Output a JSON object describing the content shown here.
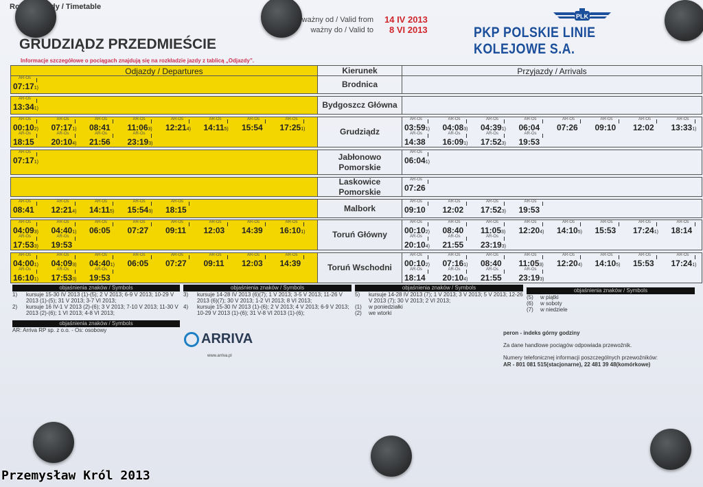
{
  "header": {
    "top_label": "Rozkład jazdy / Timetable",
    "valid_from_label": "ważny od / Valid from",
    "valid_from": "14 IV 2013",
    "valid_to_label": "ważny do / Valid to",
    "valid_to": "8 VI 2013",
    "station": "GRUDZIĄDZ PRZEDMIEŚCIE",
    "info": "Informacje szczegółowe o pociągach znajdują się na rozkładzie jazdy z tablicą „Odjazdy”.",
    "company": "PKP POLSKIE LINIE KOLEJOWE S.A.",
    "logo_text": "PLK"
  },
  "colors": {
    "departures_bg": "#f3d600",
    "company_blue": "#1b4e9b",
    "date_red": "#d0262b"
  },
  "table": {
    "departures_header": "Odjazdy / Departures",
    "direction_header": "Kierunek",
    "arrivals_header": "Przyjazdy / Arrivals",
    "carrier_code": "AR-Os",
    "rows": [
      {
        "direction": "Brodnica",
        "departures": [
          {
            "t": "07:17",
            "n": "1)"
          }
        ],
        "arrivals": []
      },
      {
        "direction": "Bydgoszcz Główna",
        "departures": [
          {
            "t": "13:34",
            "n": "1)"
          }
        ],
        "arrivals": []
      },
      {
        "direction": "Grudziądz",
        "departures": [
          {
            "t": "00:10",
            "n": "2)"
          },
          {
            "t": "07:17",
            "n": "1)"
          },
          {
            "t": "08:41",
            "n": ""
          },
          {
            "t": "11:06",
            "n": "3)"
          },
          {
            "t": "12:21",
            "n": "4)"
          },
          {
            "t": "14:11",
            "n": "5)"
          },
          {
            "t": "15:54",
            "n": ""
          },
          {
            "t": "17:25",
            "n": "1)"
          },
          {
            "t": "18:15",
            "n": ""
          },
          {
            "t": "20:10",
            "n": "4)"
          },
          {
            "t": "21:56",
            "n": ""
          },
          {
            "t": "23:19",
            "n": "3)"
          }
        ],
        "arrivals": [
          {
            "t": "03:59",
            "n": "1)"
          },
          {
            "t": "04:08",
            "n": "3)"
          },
          {
            "t": "04:39",
            "n": "1)"
          },
          {
            "t": "06:04",
            "n": ""
          },
          {
            "t": "07:26",
            "n": ""
          },
          {
            "t": "09:10",
            "n": ""
          },
          {
            "t": "12:02",
            "n": ""
          },
          {
            "t": "13:33",
            "n": "1)"
          },
          {
            "t": "14:38",
            "n": ""
          },
          {
            "t": "16:09",
            "n": "1)"
          },
          {
            "t": "17:52",
            "n": "3)"
          },
          {
            "t": "19:53",
            "n": ""
          }
        ]
      },
      {
        "direction": "Jabłonowo Pomorskie",
        "departures": [
          {
            "t": "07:17",
            "n": "1)"
          }
        ],
        "arrivals": [
          {
            "t": "06:04",
            "n": "1)"
          }
        ]
      },
      {
        "direction": "Laskowice Pomorskie",
        "departures": [],
        "arrivals": [
          {
            "t": "07:26",
            "n": ""
          }
        ]
      },
      {
        "direction": "Malbork",
        "departures": [
          {
            "t": "08:41",
            "n": ""
          },
          {
            "t": "12:21",
            "n": "4)"
          },
          {
            "t": "14:11",
            "n": "5)"
          },
          {
            "t": "15:54",
            "n": "3)"
          },
          {
            "t": "18:15",
            "n": ""
          }
        ],
        "arrivals": [
          {
            "t": "09:10",
            "n": ""
          },
          {
            "t": "12:02",
            "n": ""
          },
          {
            "t": "17:52",
            "n": "3)"
          },
          {
            "t": "19:53",
            "n": ""
          }
        ]
      },
      {
        "direction": "Toruń Główny",
        "departures": [
          {
            "t": "04:09",
            "n": "3)"
          },
          {
            "t": "04:40",
            "n": "1)"
          },
          {
            "t": "06:05",
            "n": ""
          },
          {
            "t": "07:27",
            "n": ""
          },
          {
            "t": "09:11",
            "n": ""
          },
          {
            "t": "12:03",
            "n": ""
          },
          {
            "t": "14:39",
            "n": ""
          },
          {
            "t": "16:10",
            "n": "1)"
          },
          {
            "t": "17:53",
            "n": "3)"
          },
          {
            "t": "19:53",
            "n": ""
          }
        ],
        "arrivals": [
          {
            "t": "00:10",
            "n": "2)"
          },
          {
            "t": "08:40",
            "n": ""
          },
          {
            "t": "11:05",
            "n": "3)"
          },
          {
            "t": "12:20",
            "n": "4)"
          },
          {
            "t": "14:10",
            "n": "5)"
          },
          {
            "t": "15:53",
            "n": ""
          },
          {
            "t": "17:24",
            "n": "1)"
          },
          {
            "t": "18:14",
            "n": ""
          },
          {
            "t": "20:10",
            "n": "4)"
          },
          {
            "t": "21:55",
            "n": ""
          },
          {
            "t": "23:19",
            "n": "3)"
          }
        ]
      },
      {
        "direction": "Toruń Wschodni",
        "departures": [
          {
            "t": "04:00",
            "n": "1)"
          },
          {
            "t": "04:09",
            "n": "3)"
          },
          {
            "t": "04:40",
            "n": "1)"
          },
          {
            "t": "06:05",
            "n": ""
          },
          {
            "t": "07:27",
            "n": ""
          },
          {
            "t": "09:11",
            "n": ""
          },
          {
            "t": "12:03",
            "n": ""
          },
          {
            "t": "14:39",
            "n": ""
          },
          {
            "t": "16:10",
            "n": "1)"
          },
          {
            "t": "17:53",
            "n": "3)"
          },
          {
            "t": "19:53",
            "n": ""
          }
        ],
        "arrivals": [
          {
            "t": "00:10",
            "n": "2)"
          },
          {
            "t": "07:16",
            "n": "1)"
          },
          {
            "t": "08:40",
            "n": ""
          },
          {
            "t": "11:05",
            "n": "3)"
          },
          {
            "t": "12:20",
            "n": "4)"
          },
          {
            "t": "14:10",
            "n": "5)"
          },
          {
            "t": "15:53",
            "n": ""
          },
          {
            "t": "17:24",
            "n": "1)"
          },
          {
            "t": "18:14",
            "n": ""
          },
          {
            "t": "20:10",
            "n": "4)"
          },
          {
            "t": "21:55",
            "n": ""
          },
          {
            "t": "23:19",
            "n": "3)"
          }
        ]
      }
    ]
  },
  "symbols": {
    "heading": "objaśnienia znaków / Symbols",
    "col1": [
      {
        "k": "1)",
        "v": "kursuje 15-30 IV 2013 (1)-(5); 2 V 2013; 6-9 V 2013; 10-29 V 2013 (1)-(5); 31 V 2013; 3-7 VI 2013;"
      },
      {
        "k": "2)",
        "v": "kursuje 16 IV-1 V 2013 (2)-(6); 3 V 2013; 7-10 V 2013; 11-30 V 2013 (2)-(6); 1 VI 2013; 4-8 VI 2013;"
      }
    ],
    "col2": [
      {
        "k": "3)",
        "v": "kursuje 14-28 IV 2013 (6)(7); 1 V 2013; 3-5 V 2013; 11-26 V 2013 (6)(7); 30 V 2013; 1-2 VI 2013; 8 VI 2013;"
      },
      {
        "k": "4)",
        "v": "kursuje 15-30 IV 2013 (1)-(6); 2 V 2013; 4 V 2013; 6-9 V 2013; 10-29 V 2013 (1)-(6); 31 V-8 VI 2013 (1)-(6);"
      }
    ],
    "col3": [
      {
        "k": "5)",
        "v": "kursuje 14-28 IV 2013 (7); 1 V 2013; 3 V 2013; 5 V 2013; 12-26 V 2013 (7); 30 V 2013; 2 VI 2013;"
      },
      {
        "k": "(1)",
        "v": "w poniedziałki"
      },
      {
        "k": "(2)",
        "v": "we wtorki"
      }
    ],
    "col4": [
      {
        "k": "(5)",
        "v": "w piątki"
      },
      {
        "k": "(6)",
        "v": "w soboty"
      },
      {
        "k": "(7)",
        "v": "w niedziele"
      }
    ],
    "carrier": "AR: Arriva RP sp. z o.o. - Os: osobowy"
  },
  "arriva": {
    "name": "ARRIVA",
    "url": "www.arriva.pl"
  },
  "footer": {
    "peron": "peron - indeks górny godziny",
    "commercial": "Za dane handlowe pociągów odpowiada przewoźnik.",
    "phones_label": "Numery telefonicznej informacji poszczególnych przewoźników:",
    "phones": "AR - 801 081 515(stacjonarne), 22 481 39 48(komórkowe)"
  },
  "watermark": "Przemysław Król 2013"
}
